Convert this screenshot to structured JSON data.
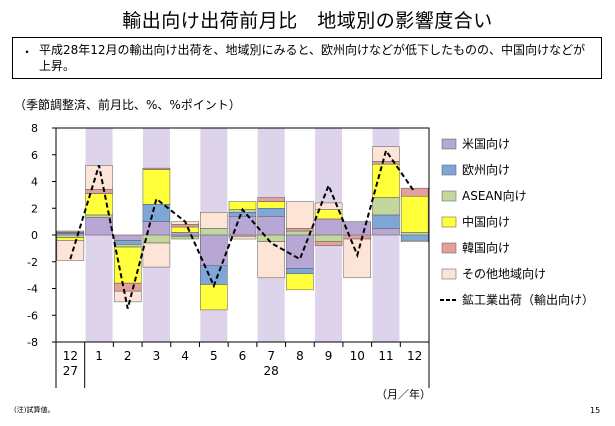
{
  "page": {
    "title": "輸出向け出荷前月比　地域別の影響度合い",
    "summary_bullet": "・",
    "summary": "平成28年12月の輸出向け出荷を、地域別にみると、欧州向けなどが低下したものの、中国向けなどが上昇。",
    "unit_note": "（季節調整済、前月比、%、%ポイント）",
    "footnote": "(注)試算値。",
    "page_number": "15"
  },
  "chart_data": {
    "type": "bar",
    "stacked": true,
    "title": "",
    "xlabel": "（月／年）",
    "ylabel": "",
    "ylim": [
      -8,
      8
    ],
    "yticks": [
      8,
      6,
      4,
      2,
      0,
      -2,
      -4,
      -6,
      -8
    ],
    "categories": [
      "12",
      "1",
      "2",
      "3",
      "4",
      "5",
      "6",
      "7",
      "8",
      "9",
      "10",
      "11",
      "12"
    ],
    "year_labels": [
      {
        "label": "27",
        "category": "12"
      },
      {
        "label": "28",
        "category": "7"
      }
    ],
    "grid": false,
    "legend": "right",
    "shaded_categories": [
      1,
      3,
      5,
      7,
      9,
      11
    ],
    "shade_color": "#ddd4ec",
    "series": [
      {
        "name": "米国向け",
        "color": "#b8a6d4",
        "values": [
          0.1,
          1.3,
          -0.4,
          1.0,
          0.2,
          -2.3,
          1.4,
          1.4,
          -2.5,
          1.2,
          1.0,
          0.5,
          0.0
        ]
      },
      {
        "name": "欧州向け",
        "color": "#7ea7d8",
        "values": [
          0.1,
          0.0,
          -0.3,
          1.3,
          -0.1,
          -1.4,
          0.3,
          0.6,
          -0.4,
          0.0,
          0.0,
          1.0,
          -0.4
        ]
      },
      {
        "name": "ASEAN向け",
        "color": "#c3d69b",
        "values": [
          -0.2,
          0.2,
          -0.2,
          -0.6,
          -0.2,
          0.5,
          0.2,
          -0.5,
          0.3,
          -0.5,
          0.0,
          1.3,
          0.2
        ]
      },
      {
        "name": "中国向け",
        "color": "#ffff3c",
        "values": [
          -0.2,
          1.6,
          -2.7,
          2.6,
          0.4,
          -1.9,
          0.6,
          0.5,
          -1.2,
          0.7,
          0.0,
          2.5,
          2.7
        ]
      },
      {
        "name": "韓国向け",
        "color": "#e6a09b",
        "values": [
          0.1,
          0.3,
          -0.6,
          0.1,
          0.2,
          0.0,
          -0.1,
          0.3,
          0.2,
          -0.3,
          -0.3,
          0.2,
          0.6
        ]
      },
      {
        "name": "その他地域向け",
        "color": "#fce4d6",
        "values": [
          -1.5,
          1.8,
          -0.8,
          -1.8,
          0.2,
          1.2,
          -0.2,
          -2.7,
          2.0,
          0.5,
          -2.9,
          1.1,
          -0.1
        ]
      }
    ],
    "line_series": {
      "name": "鉱工業出荷（輸出向け）",
      "style": "dashed",
      "color": "#000000",
      "values": [
        -1.8,
        5.2,
        -5.5,
        2.7,
        1.0,
        -3.8,
        1.9,
        -0.6,
        -1.8,
        3.7,
        -1.5,
        6.3,
        3.2
      ]
    }
  }
}
